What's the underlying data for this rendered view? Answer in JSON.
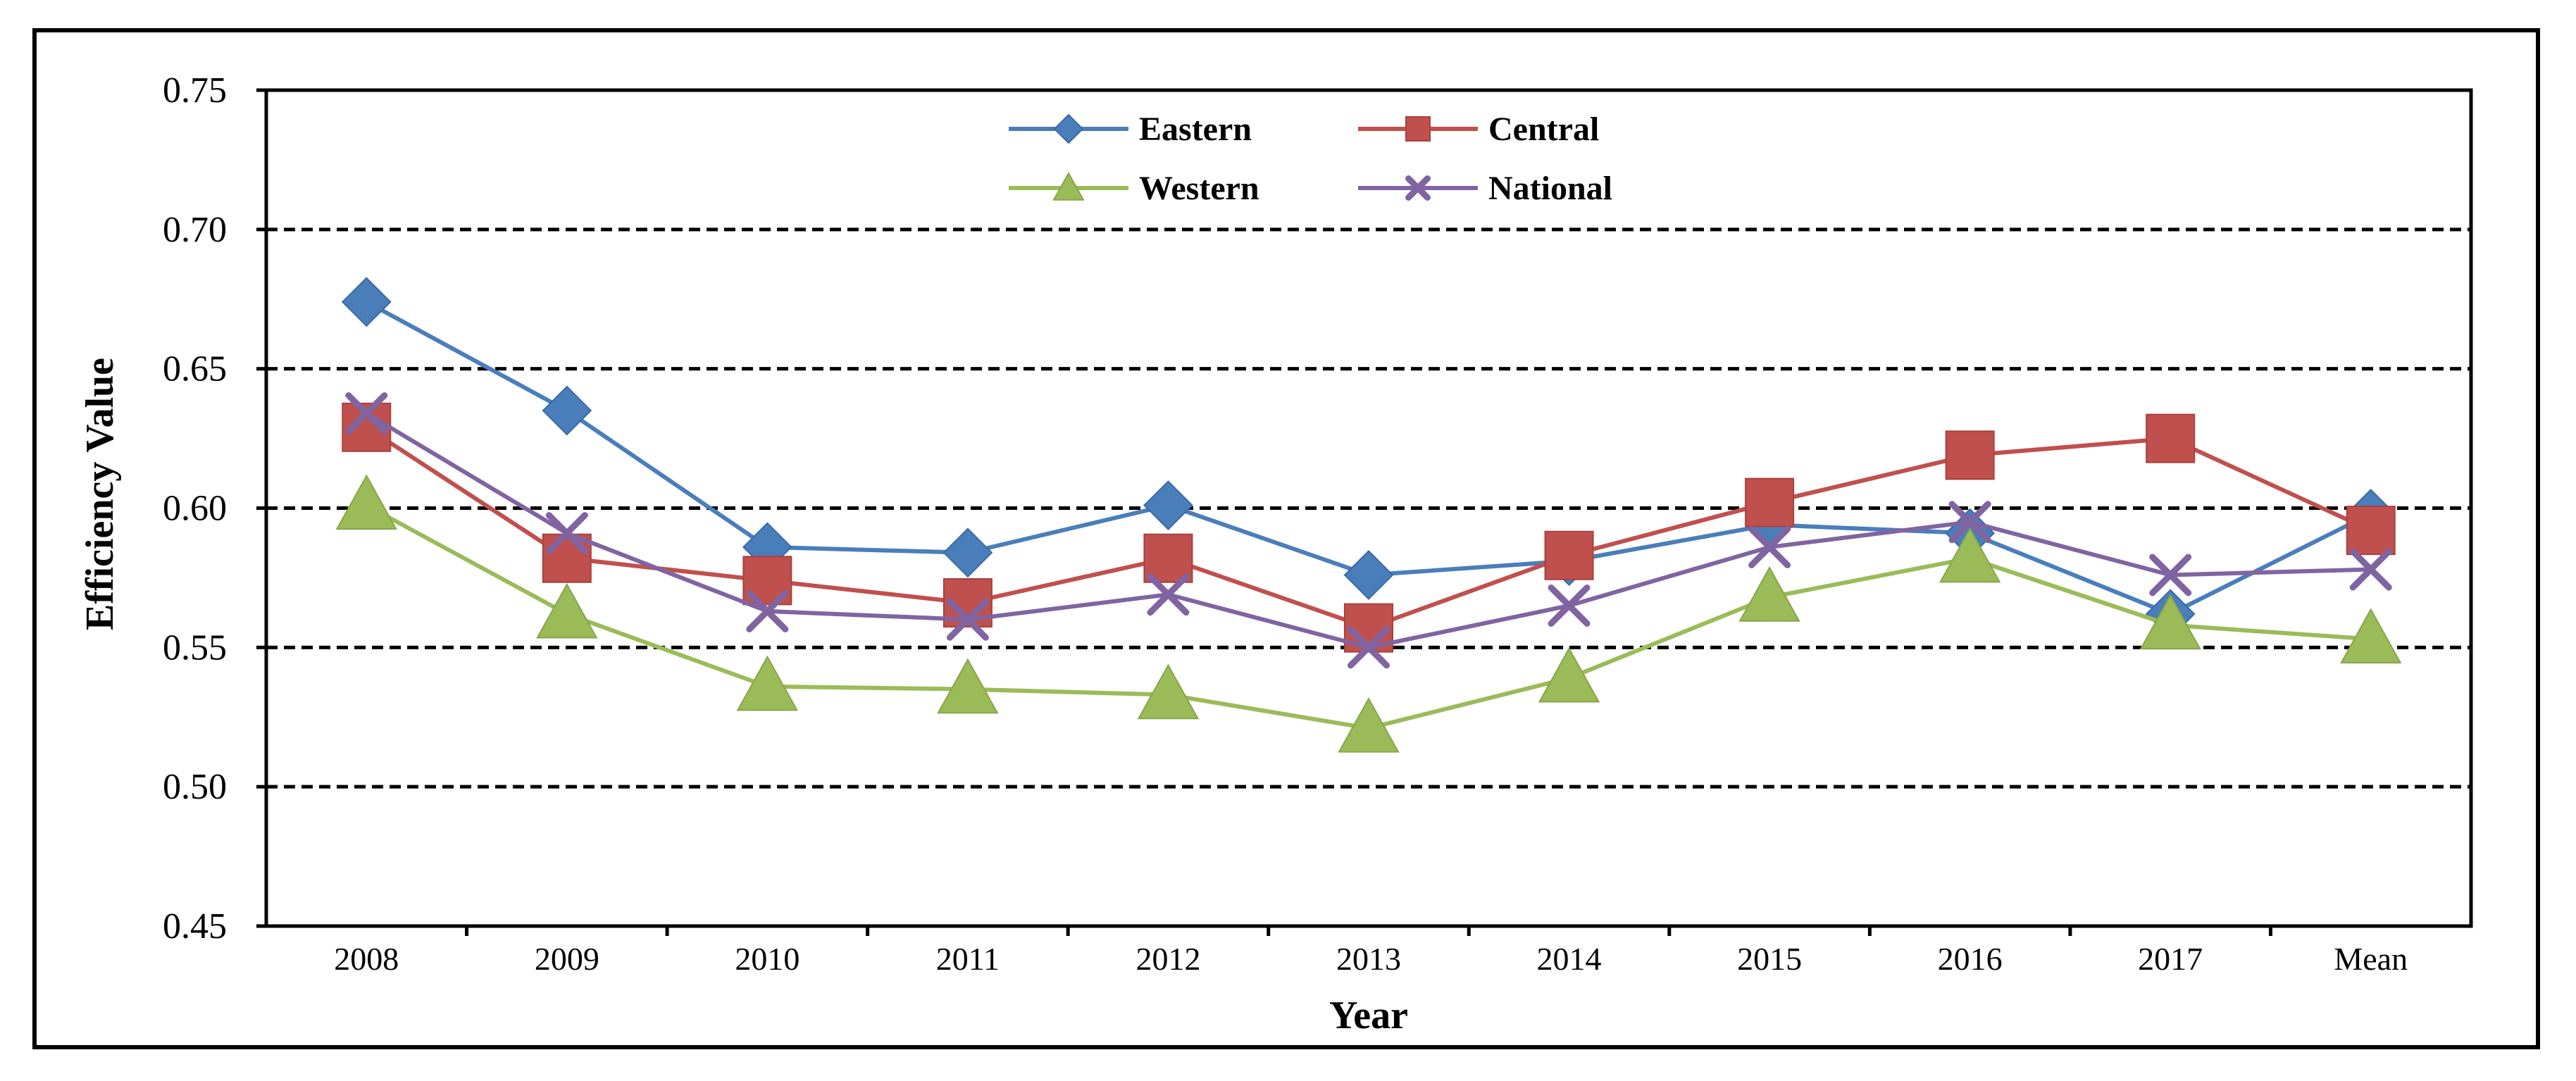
{
  "chart_data": {
    "type": "line",
    "title": "",
    "xlabel": "Year",
    "ylabel": "Efficiency Value",
    "categories": [
      "2008",
      "2009",
      "2010",
      "2011",
      "2012",
      "2013",
      "2014",
      "2015",
      "2016",
      "2017",
      "Mean"
    ],
    "ylim": [
      0.45,
      0.75
    ],
    "yticks": [
      "0.45",
      "0.50",
      "0.55",
      "0.60",
      "0.65",
      "0.70",
      "0.75"
    ],
    "ytick_values": [
      0.45,
      0.5,
      0.55,
      0.6,
      0.65,
      0.7,
      0.75
    ],
    "gridlines": "dashed, horizontal, at 0.50, 0.55, 0.60, 0.65, 0.70",
    "legend_position": "top-center",
    "series": [
      {
        "name": "Eastern",
        "color": "#4A7EBB",
        "marker": "diamond",
        "values": [
          0.674,
          0.635,
          0.586,
          0.584,
          0.601,
          0.576,
          0.581,
          0.594,
          0.591,
          0.562,
          0.598
        ]
      },
      {
        "name": "Central",
        "color": "#C0504D",
        "marker": "square",
        "values": [
          0.629,
          0.582,
          0.574,
          0.566,
          0.582,
          0.557,
          0.583,
          0.602,
          0.619,
          0.625,
          0.592
        ]
      },
      {
        "name": "Western",
        "color": "#9BBB59",
        "marker": "triangle",
        "values": [
          0.601,
          0.562,
          0.536,
          0.535,
          0.533,
          0.521,
          0.539,
          0.568,
          0.582,
          0.558,
          0.553
        ]
      },
      {
        "name": "National",
        "color": "#8064A2",
        "marker": "cross",
        "values": [
          0.634,
          0.591,
          0.563,
          0.56,
          0.569,
          0.55,
          0.565,
          0.586,
          0.595,
          0.576,
          0.578
        ]
      }
    ]
  }
}
